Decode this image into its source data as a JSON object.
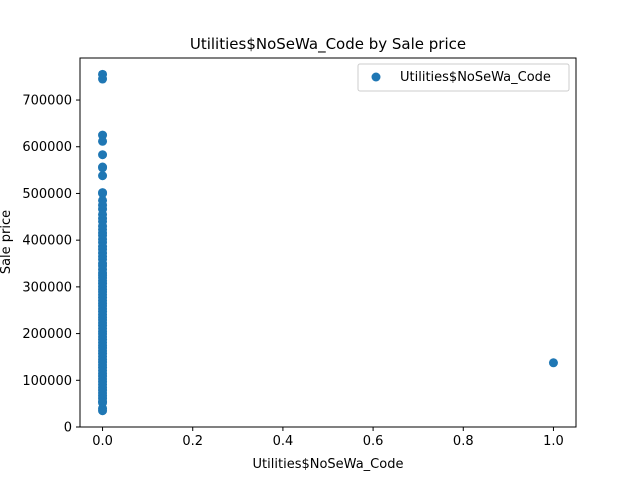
{
  "chart_data": {
    "type": "scatter",
    "title": "Utilities$NoSeWa_Code by Sale price",
    "xlabel": "Utilities$NoSeWa_Code",
    "ylabel": "Sale price",
    "xlim": [
      -0.05,
      1.05
    ],
    "ylim": [
      0,
      790000
    ],
    "x_ticks": [
      0.0,
      0.2,
      0.4,
      0.6,
      0.8,
      1.0
    ],
    "x_tick_labels": [
      "0.0",
      "0.2",
      "0.4",
      "0.6",
      "0.8",
      "1.0"
    ],
    "y_ticks": [
      0,
      100000,
      200000,
      300000,
      400000,
      500000,
      600000,
      700000
    ],
    "y_tick_labels": [
      "0",
      "100000",
      "200000",
      "300000",
      "400000",
      "500000",
      "600000",
      "700000"
    ],
    "grid": false,
    "legend_position": "top-right",
    "series": [
      {
        "name": "Utilities$NoSeWa_Code",
        "color": "#1f77b4",
        "points": [
          [
            0,
            755000
          ],
          [
            0,
            745000
          ],
          [
            0,
            625000
          ],
          [
            0,
            611657
          ],
          [
            0,
            582933
          ],
          [
            0,
            556581
          ],
          [
            0,
            555000
          ],
          [
            0,
            538000
          ],
          [
            0,
            501837
          ],
          [
            0,
            500000
          ],
          [
            0,
            485000
          ],
          [
            0,
            475000
          ],
          [
            0,
            466500
          ],
          [
            0,
            455000
          ],
          [
            0,
            446261
          ],
          [
            0,
            440000
          ],
          [
            0,
            430000
          ],
          [
            0,
            423000
          ],
          [
            0,
            415298
          ],
          [
            0,
            410000
          ],
          [
            0,
            402000
          ],
          [
            0,
            395000
          ],
          [
            0,
            386250
          ],
          [
            0,
            380000
          ],
          [
            0,
            372500
          ],
          [
            0,
            365000
          ],
          [
            0,
            359100
          ],
          [
            0,
            350000
          ],
          [
            0,
            345000
          ],
          [
            0,
            337500
          ],
          [
            0,
            330000
          ],
          [
            0,
            325000
          ],
          [
            0,
            319000
          ],
          [
            0,
            313000
          ],
          [
            0,
            307000
          ],
          [
            0,
            301000
          ],
          [
            0,
            295000
          ],
          [
            0,
            289000
          ],
          [
            0,
            283000
          ],
          [
            0,
            277000
          ],
          [
            0,
            271000
          ],
          [
            0,
            265000
          ],
          [
            0,
            259000
          ],
          [
            0,
            253000
          ],
          [
            0,
            247000
          ],
          [
            0,
            241000
          ],
          [
            0,
            235000
          ],
          [
            0,
            229000
          ],
          [
            0,
            223000
          ],
          [
            0,
            217000
          ],
          [
            0,
            211000
          ],
          [
            0,
            205000
          ],
          [
            0,
            199000
          ],
          [
            0,
            193000
          ],
          [
            0,
            187000
          ],
          [
            0,
            181000
          ],
          [
            0,
            175000
          ],
          [
            0,
            169000
          ],
          [
            0,
            163000
          ],
          [
            0,
            157000
          ],
          [
            0,
            151000
          ],
          [
            0,
            145000
          ],
          [
            0,
            139000
          ],
          [
            0,
            133000
          ],
          [
            0,
            127000
          ],
          [
            0,
            121000
          ],
          [
            0,
            115000
          ],
          [
            0,
            109000
          ],
          [
            0,
            103000
          ],
          [
            0,
            97000
          ],
          [
            0,
            91000
          ],
          [
            0,
            85000
          ],
          [
            0,
            79000
          ],
          [
            0,
            73000
          ],
          [
            0,
            67000
          ],
          [
            0,
            61000
          ],
          [
            0,
            55000
          ],
          [
            0,
            52000
          ],
          [
            0,
            40000
          ],
          [
            0,
            34900
          ],
          [
            1,
            137500
          ]
        ]
      }
    ]
  }
}
